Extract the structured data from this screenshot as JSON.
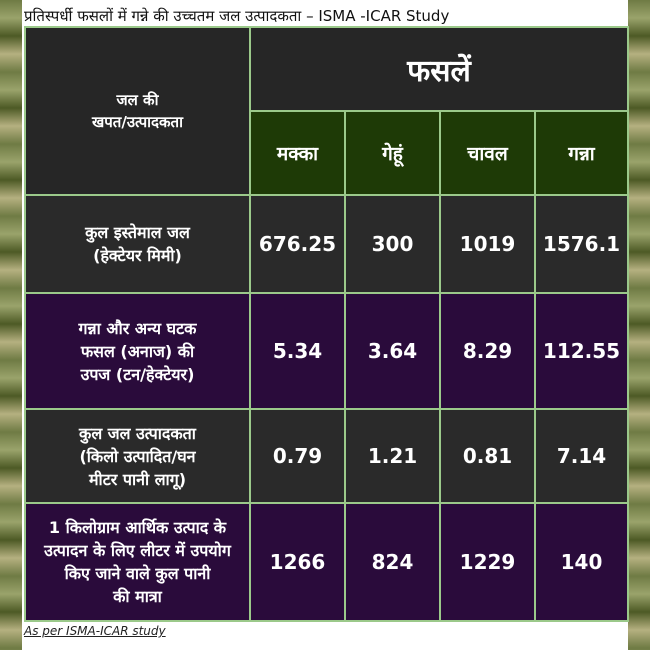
{
  "caption": "प्रतिस्पर्धी फसलों में गन्ने की उच्चतम जल उत्पादकता – ISMA -ICAR Study",
  "table": {
    "corner_line1": "जल की",
    "corner_line2": "खपत/उत्पादकता",
    "crops_heading": "फसलें",
    "crops": [
      "मक्का",
      "गेहूं",
      "चावल",
      "गन्ना"
    ],
    "rows": [
      {
        "label": [
          "कुल इस्तेमाल जल",
          "(हेक्टेयर मिमी)"
        ],
        "values": [
          "676.25",
          "300",
          "1019",
          "1576.1"
        ]
      },
      {
        "label": [
          "गन्ना और अन्य घटक",
          "फसल (अनाज) की",
          "उपज (टन/हेक्टेयर)"
        ],
        "values": [
          "5.34",
          "3.64",
          "8.29",
          "112.55"
        ]
      },
      {
        "label": [
          "कुल जल उत्पादकता",
          "(किलो उत्पादित/घन",
          "मीटर पानी लागू)"
        ],
        "values": [
          "0.79",
          "1.21",
          "0.81",
          "7.14"
        ]
      },
      {
        "label": [
          "1 किलोग्राम आर्थिक उत्पाद के",
          "उत्पादन के लिए लीटर में उपयोग",
          "किए जाने वाले कुल पानी",
          "की मात्रा"
        ],
        "values": [
          "1266",
          "824",
          "1229",
          "140"
        ]
      }
    ]
  },
  "source": "As per ISMA-ICAR study"
}
